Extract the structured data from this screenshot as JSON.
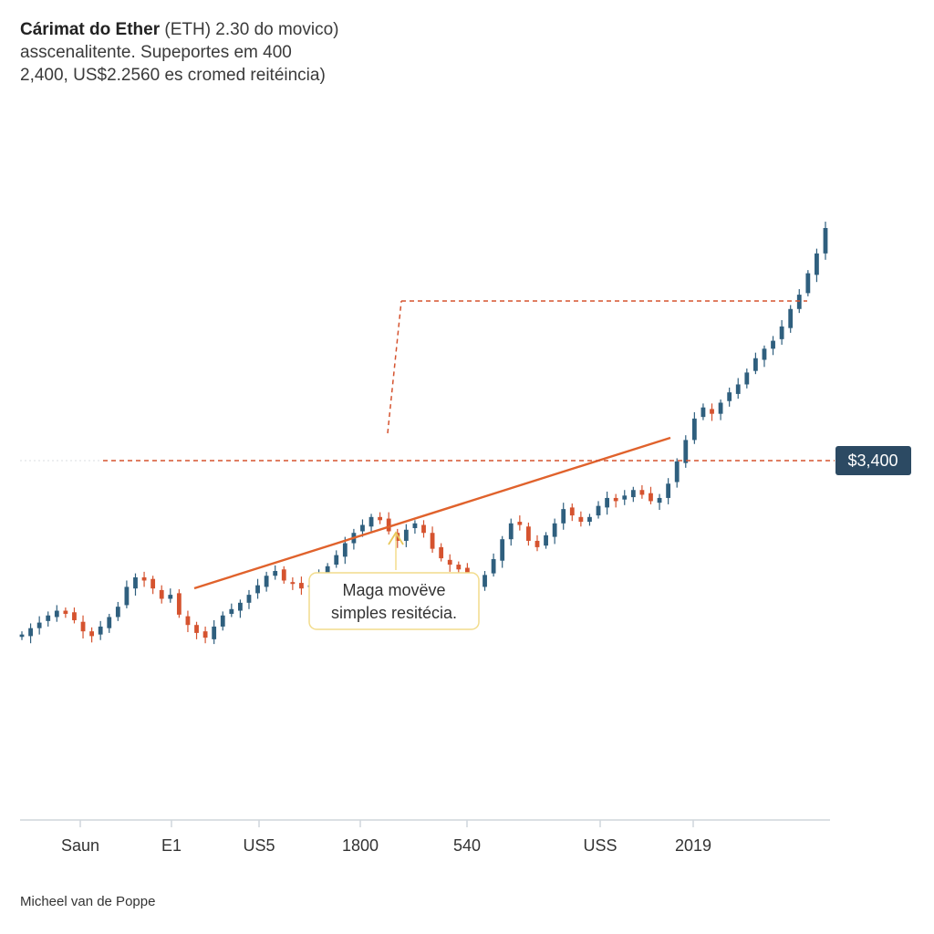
{
  "title": {
    "bold": "Cárimat do Ether",
    "line1_rest": " (ETH) 2.30 do movico)",
    "line2": "asscenalitente. Supeportes em  400",
    "line3": "2,400, US$2.2560 es cromed reitéincia)"
  },
  "credit": "Micheel van de Poppe",
  "colors": {
    "up": "#2f5f7e",
    "down": "#d5532f",
    "trendline": "#e0622c",
    "dashed": "#d5532f",
    "price_tag_bg": "#2c4a63",
    "annotation_border": "#f2dc8c",
    "axis": "#cfd6dc"
  },
  "chart_data": {
    "type": "candlestick",
    "title": "Cárimat do Ether",
    "x_tick_labels": [
      "Saun",
      "E1",
      "US5",
      "1800",
      "540",
      "USS",
      "2019"
    ],
    "price_tag": "$3,400",
    "annotation": {
      "line1": "Maga movëve",
      "line2": "simples resitécia."
    },
    "trendline": "ascending support",
    "closes": [
      100,
      108,
      115,
      124,
      130,
      126,
      118,
      104,
      98,
      110,
      122,
      135,
      160,
      172,
      168,
      158,
      145,
      150,
      125,
      112,
      102,
      96,
      110,
      124,
      132,
      140,
      150,
      162,
      174,
      180,
      168,
      165,
      158,
      162,
      175,
      186,
      200,
      215,
      228,
      238,
      248,
      244,
      230,
      218,
      232,
      240,
      228,
      208,
      196,
      188,
      182,
      170,
      160,
      175,
      195,
      220,
      240,
      238,
      218,
      210,
      225,
      240,
      258,
      250,
      242,
      248,
      262,
      272,
      268,
      275,
      282,
      276,
      268,
      272,
      290,
      318,
      345,
      372,
      386,
      378,
      392,
      405,
      415,
      430,
      448,
      460,
      470,
      488,
      510,
      528,
      555,
      580,
      612
    ]
  }
}
